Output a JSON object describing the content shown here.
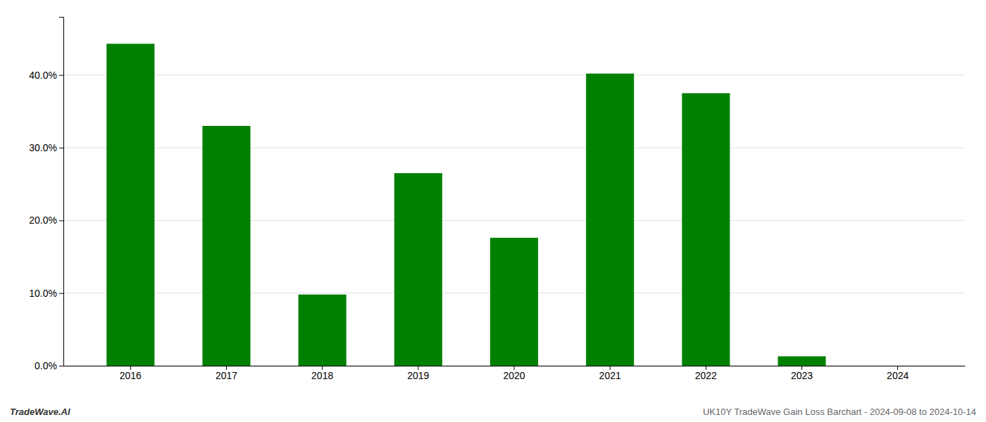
{
  "chart_data": {
    "type": "bar",
    "categories": [
      "2016",
      "2017",
      "2018",
      "2019",
      "2020",
      "2021",
      "2022",
      "2023",
      "2024"
    ],
    "values": [
      0.443,
      0.33,
      0.098,
      0.265,
      0.176,
      0.402,
      0.375,
      0.013,
      0.0
    ],
    "color": "#008000",
    "ylim": [
      0,
      0.48
    ],
    "yticks": [
      {
        "value": 0.0,
        "label": "0.0%"
      },
      {
        "value": 0.1,
        "label": "10.0%"
      },
      {
        "value": 0.2,
        "label": "20.0%"
      },
      {
        "value": 0.3,
        "label": "30.0%"
      },
      {
        "value": 0.4,
        "label": "40.0%"
      }
    ],
    "grid": true,
    "annotations": [
      "TradeWave.AI",
      "UK10Y TradeWave Gain Loss Barchart - 2024-09-08 to 2024-10-14"
    ]
  }
}
